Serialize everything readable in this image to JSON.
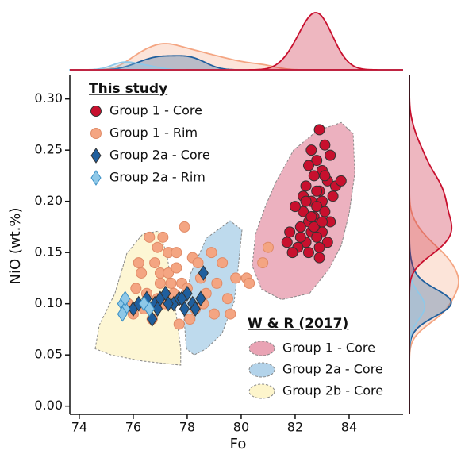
{
  "chart_data": {
    "type": "scatter",
    "xlabel": "Fo",
    "ylabel": "NiO (wt.%)",
    "xlim": [
      73.65,
      86.0
    ],
    "ylim": [
      -0.008,
      0.323
    ],
    "xticks": [
      74,
      76,
      78,
      80,
      82,
      84
    ],
    "yticks": [
      {
        "value": 0.0,
        "label": "0.00"
      },
      {
        "value": 0.05,
        "label": "0.05"
      },
      {
        "value": 0.1,
        "label": "0.10"
      },
      {
        "value": 0.15,
        "label": "0.15"
      },
      {
        "value": 0.2,
        "label": "0.20"
      },
      {
        "value": 0.25,
        "label": "0.25"
      },
      {
        "value": 0.3,
        "label": "0.30"
      }
    ],
    "legend_title": "This study",
    "regions_legend_title": "W & R (2017)",
    "regions": [
      {
        "name": "Group 1 - Core",
        "color": "#e9a3b4",
        "x": [
          80.41,
          80.53,
          80.91,
          81.29,
          81.94,
          82.82,
          83.71,
          84.15,
          84.21,
          84.0,
          83.71,
          83.26,
          82.53,
          81.5,
          80.76
        ],
        "y": [
          0.137,
          0.168,
          0.196,
          0.219,
          0.25,
          0.269,
          0.277,
          0.266,
          0.227,
          0.188,
          0.157,
          0.134,
          0.11,
          0.104,
          0.114
        ]
      },
      {
        "name": "Group 2a - Core",
        "color": "#b3d3ea",
        "x": [
          77.97,
          77.88,
          78.12,
          78.71,
          79.59,
          80.03,
          79.88,
          79.74,
          79.29,
          78.71,
          78.26
        ],
        "y": [
          0.056,
          0.087,
          0.129,
          0.164,
          0.181,
          0.172,
          0.133,
          0.102,
          0.071,
          0.056,
          0.05
        ]
      },
      {
        "name": "Group 2b - Core",
        "color": "#fdf5cc",
        "x": [
          74.59,
          74.74,
          75.32,
          75.76,
          76.35,
          76.94,
          77.24,
          77.53,
          77.76,
          77.76,
          76.35,
          75.18
        ],
        "y": [
          0.056,
          0.079,
          0.11,
          0.149,
          0.168,
          0.171,
          0.149,
          0.102,
          0.056,
          0.04,
          0.044,
          0.05
        ]
      }
    ],
    "series": [
      {
        "name": "Group 1 - Core",
        "color": "#c8102e",
        "marker": "circle",
        "x": [
          82.9,
          82.6,
          83.1,
          82.8,
          83.3,
          82.5,
          83.0,
          82.7,
          83.2,
          82.4,
          82.9,
          83.4,
          82.6,
          83.0,
          82.8,
          82.3,
          83.1,
          82.7,
          82.5,
          83.3,
          82.9,
          82.2,
          82.6,
          83.0,
          82.8,
          82.4,
          83.2,
          82.1,
          81.9,
          82.5,
          82.7,
          83.5,
          82.0,
          81.8,
          82.3,
          82.9,
          83.1,
          82.6,
          81.7,
          82.8,
          83.0,
          83.7,
          82.4,
          82.2,
          82.9
        ],
        "y": [
          0.27,
          0.25,
          0.255,
          0.24,
          0.245,
          0.235,
          0.23,
          0.225,
          0.22,
          0.215,
          0.21,
          0.205,
          0.2,
          0.2,
          0.195,
          0.19,
          0.19,
          0.185,
          0.18,
          0.18,
          0.175,
          0.175,
          0.17,
          0.17,
          0.165,
          0.16,
          0.16,
          0.155,
          0.15,
          0.15,
          0.175,
          0.215,
          0.195,
          0.17,
          0.205,
          0.155,
          0.225,
          0.185,
          0.16,
          0.21,
          0.18,
          0.22,
          0.2,
          0.165,
          0.145
        ]
      },
      {
        "name": "Group 1 - Rim",
        "color": "#f4a582",
        "marker": "circle",
        "x": [
          76.6,
          77.1,
          77.9,
          77.3,
          76.8,
          77.6,
          78.2,
          78.9,
          79.3,
          79.8,
          80.8,
          81.0,
          78.5,
          77.0,
          76.3,
          76.1,
          76.5,
          77.4,
          77.8,
          78.0,
          78.7,
          79.1,
          79.5,
          80.2,
          76.9,
          77.2,
          77.5,
          76.4,
          76.0,
          78.3,
          78.6,
          79.0,
          79.6,
          76.7,
          77.7,
          78.1,
          75.8,
          76.2,
          77.0,
          77.3,
          78.4,
          80.3,
          76.9,
          77.6
        ],
        "y": [
          0.165,
          0.165,
          0.175,
          0.15,
          0.14,
          0.15,
          0.145,
          0.15,
          0.14,
          0.125,
          0.14,
          0.155,
          0.125,
          0.13,
          0.13,
          0.115,
          0.11,
          0.12,
          0.12,
          0.115,
          0.11,
          0.12,
          0.105,
          0.125,
          0.105,
          0.1,
          0.11,
          0.095,
          0.09,
          0.095,
          0.1,
          0.09,
          0.09,
          0.085,
          0.08,
          0.085,
          0.1,
          0.14,
          0.12,
          0.13,
          0.14,
          0.12,
          0.155,
          0.135
        ]
      },
      {
        "name": "Group 2a - Core",
        "color": "#1f5f9e",
        "marker": "diamond",
        "x": [
          76.0,
          76.2,
          76.5,
          76.8,
          77.0,
          77.2,
          77.5,
          77.7,
          78.0,
          78.2,
          78.5,
          78.6,
          77.9,
          76.9,
          77.3,
          77.8,
          78.3,
          76.7
        ],
        "y": [
          0.095,
          0.1,
          0.105,
          0.1,
          0.105,
          0.11,
          0.1,
          0.105,
          0.11,
          0.1,
          0.105,
          0.13,
          0.095,
          0.095,
          0.1,
          0.105,
          0.095,
          0.085
        ]
      },
      {
        "name": "Group 2a - Rim",
        "color": "#8ec8e8",
        "marker": "diamond",
        "x": [
          75.6,
          75.7,
          75.6,
          75.7,
          76.4,
          76.6
        ],
        "y": [
          0.1,
          0.095,
          0.09,
          0.105,
          0.1,
          0.095
        ]
      }
    ]
  }
}
